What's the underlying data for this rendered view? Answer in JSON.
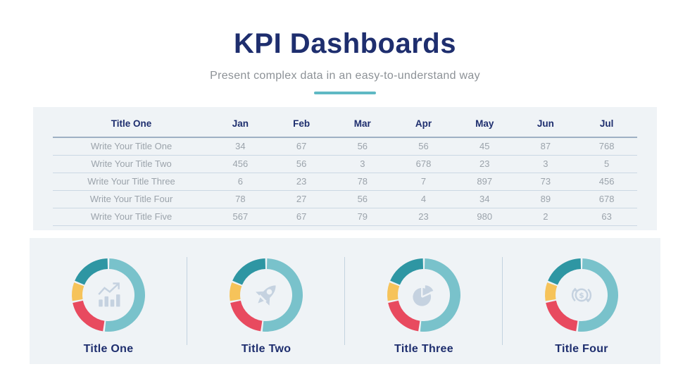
{
  "slide": {
    "title": "KPI Dashboards",
    "subtitle": "Present complex data in an easy-to-understand way"
  },
  "colors": {
    "navy": "#1E2E6E",
    "accent_teal": "#5FB9C4",
    "panel_bg": "#EFF3F6",
    "row_text_gray": "#9BA3AB",
    "icon_gray": "#C5D2E0",
    "donut_teal_light": "#79C2CB",
    "donut_teal_dark": "#2E96A3",
    "donut_red": "#E84A5F",
    "donut_yellow": "#F6C35A"
  },
  "chart_data": [
    {
      "type": "table",
      "columns": [
        "Title One",
        "Jan",
        "Feb",
        "Mar",
        "Apr",
        "May",
        "Jun",
        "Jul"
      ],
      "rows": [
        {
          "label": "Write Your Title One",
          "values": [
            34,
            67,
            56,
            56,
            45,
            87,
            768
          ]
        },
        {
          "label": "Write Your Title Two",
          "values": [
            456,
            56,
            3,
            678,
            23,
            3,
            5
          ]
        },
        {
          "label": "Write Your Title Three",
          "values": [
            6,
            23,
            78,
            7,
            897,
            73,
            456
          ]
        },
        {
          "label": "Write Your Title Four",
          "values": [
            78,
            27,
            56,
            4,
            34,
            89,
            678
          ]
        },
        {
          "label": "Write Your Title Five",
          "values": [
            567,
            67,
            79,
            23,
            980,
            2,
            63
          ]
        }
      ]
    },
    {
      "type": "pie",
      "variant": "donut",
      "title": "Title One",
      "icon": "growth-chart-icon",
      "segments": [
        {
          "name": "teal-light",
          "color": "#79C2CB",
          "percent": 52
        },
        {
          "name": "red",
          "color": "#E84A5F",
          "percent": 20
        },
        {
          "name": "yellow",
          "color": "#F6C35A",
          "percent": 9
        },
        {
          "name": "teal-dark",
          "color": "#2E96A3",
          "percent": 19
        }
      ]
    },
    {
      "type": "pie",
      "variant": "donut",
      "title": "Title Two",
      "icon": "rocket-icon",
      "segments": [
        {
          "name": "teal-light",
          "color": "#79C2CB",
          "percent": 52
        },
        {
          "name": "red",
          "color": "#E84A5F",
          "percent": 20
        },
        {
          "name": "yellow",
          "color": "#F6C35A",
          "percent": 9
        },
        {
          "name": "teal-dark",
          "color": "#2E96A3",
          "percent": 19
        }
      ]
    },
    {
      "type": "pie",
      "variant": "donut",
      "title": "Title Three",
      "icon": "pie-chart-icon",
      "segments": [
        {
          "name": "teal-light",
          "color": "#79C2CB",
          "percent": 52
        },
        {
          "name": "red",
          "color": "#E84A5F",
          "percent": 20
        },
        {
          "name": "yellow",
          "color": "#F6C35A",
          "percent": 9
        },
        {
          "name": "teal-dark",
          "color": "#2E96A3",
          "percent": 19
        }
      ]
    },
    {
      "type": "pie",
      "variant": "donut",
      "title": "Title Four",
      "icon": "money-transfer-icon",
      "segments": [
        {
          "name": "teal-light",
          "color": "#79C2CB",
          "percent": 52
        },
        {
          "name": "red",
          "color": "#E84A5F",
          "percent": 20
        },
        {
          "name": "yellow",
          "color": "#F6C35A",
          "percent": 9
        },
        {
          "name": "teal-dark",
          "color": "#2E96A3",
          "percent": 19
        }
      ]
    }
  ]
}
